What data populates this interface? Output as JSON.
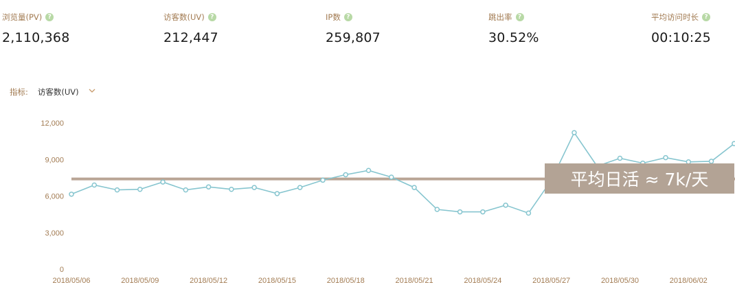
{
  "stats": [
    {
      "label": "浏览量(PV)",
      "value": "2,110,368"
    },
    {
      "label": "访客数(UV)",
      "value": "212,447"
    },
    {
      "label": "IP数",
      "value": "259,807"
    },
    {
      "label": "跳出率",
      "value": "30.52%"
    },
    {
      "label": "平均访问时长",
      "value": "00:10:25"
    }
  ],
  "help_glyph": "?",
  "metric_selector": {
    "label": "指标:",
    "value": "访客数(UV)",
    "icon": "chevron-down-icon"
  },
  "chart_data": {
    "type": "line",
    "x": [
      "2018/05/06",
      "2018/05/07",
      "2018/05/08",
      "2018/05/09",
      "2018/05/10",
      "2018/05/11",
      "2018/05/12",
      "2018/05/13",
      "2018/05/14",
      "2018/05/15",
      "2018/05/16",
      "2018/05/17",
      "2018/05/18",
      "2018/05/19",
      "2018/05/20",
      "2018/05/21",
      "2018/05/22",
      "2018/05/23",
      "2018/05/24",
      "2018/05/25",
      "2018/05/26",
      "2018/05/27",
      "2018/05/28",
      "2018/05/29",
      "2018/05/30",
      "2018/05/31",
      "2018/06/01",
      "2018/06/02",
      "2018/06/03",
      "2018/06/04"
    ],
    "values": [
      6150,
      6900,
      6500,
      6550,
      7150,
      6500,
      6750,
      6550,
      6700,
      6200,
      6700,
      7300,
      7750,
      8100,
      7550,
      6700,
      4900,
      4700,
      4700,
      5250,
      4600,
      7300,
      11200,
      8450,
      9100,
      8700,
      9150,
      8800,
      8850,
      10300
    ],
    "ylim": [
      0,
      12000
    ],
    "yticks": [
      "12,000",
      "9,000",
      "6,000",
      "3,000",
      "0"
    ],
    "ytick_values": [
      12000,
      9000,
      6000,
      3000,
      0
    ],
    "xticks": [
      "2018/05/06",
      "2018/05/09",
      "2018/05/12",
      "2018/05/15",
      "2018/05/18",
      "2018/05/21",
      "2018/05/24",
      "2018/05/27",
      "2018/05/30",
      "2018/06/02"
    ],
    "reference_line": {
      "value": 7400,
      "label": "平均日活 ≈ 7k/天"
    },
    "colors": {
      "line": "#86c5cf",
      "reference": "#b9a595",
      "axis_text": "#a27b52",
      "label_box": "#b3a395"
    }
  }
}
